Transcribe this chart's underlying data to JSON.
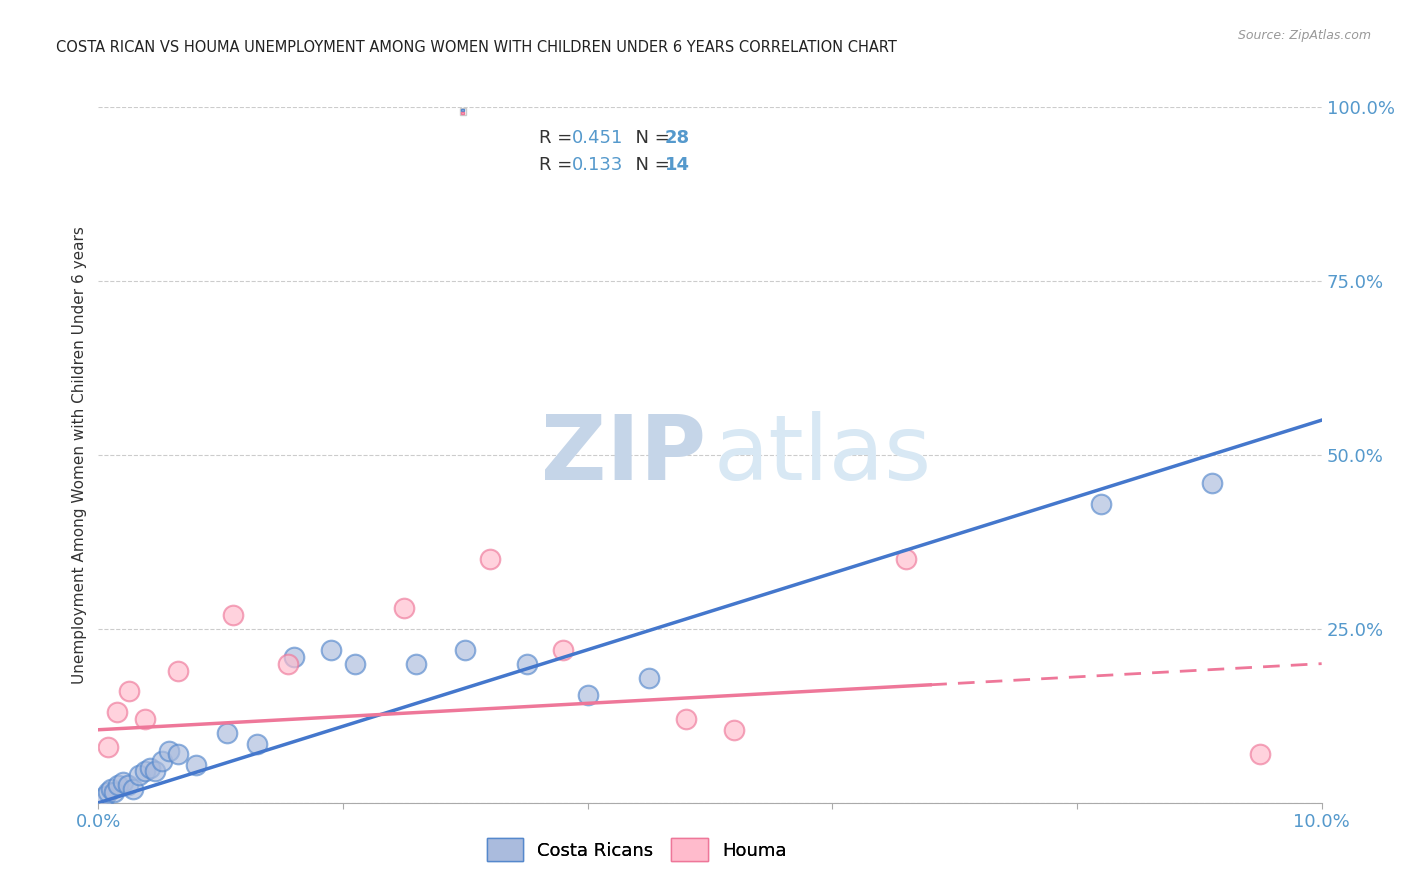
{
  "title": "COSTA RICAN VS HOUMA UNEMPLOYMENT AMONG WOMEN WITH CHILDREN UNDER 6 YEARS CORRELATION CHART",
  "source": "Source: ZipAtlas.com",
  "ylabel": "Unemployment Among Women with Children Under 6 years",
  "xlim": [
    0.0,
    10.0
  ],
  "ylim": [
    0.0,
    100.0
  ],
  "yticks_right": [
    0.0,
    25.0,
    50.0,
    75.0,
    100.0
  ],
  "ytick_labels_right": [
    "",
    "25.0%",
    "50.0%",
    "75.0%",
    "100.0%"
  ],
  "xticks": [
    0.0,
    2.0,
    4.0,
    6.0,
    8.0,
    10.0
  ],
  "xtick_labels": [
    "0.0%",
    "",
    "",
    "",
    "",
    "10.0%"
  ],
  "legend_blue_r": "R = 0.451",
  "legend_blue_n": "N = 28",
  "legend_pink_r": "R = 0.133",
  "legend_pink_n": "N = 14",
  "legend_label_blue": "Costa Ricans",
  "legend_label_pink": "Houma",
  "blue_face_color": "#AABBDD",
  "blue_edge_color": "#5588CC",
  "pink_face_color": "#FFBBCC",
  "pink_edge_color": "#EE7799",
  "blue_line_color": "#4477CC",
  "pink_line_color": "#EE7799",
  "right_axis_color": "#5599CC",
  "background_color": "#FFFFFF",
  "grid_color": "#CCCCCC",
  "costa_ricans_x": [
    0.05,
    0.08,
    0.1,
    0.13,
    0.16,
    0.2,
    0.24,
    0.28,
    0.33,
    0.38,
    0.42,
    0.46,
    0.52,
    0.58,
    0.65,
    0.8,
    1.05,
    1.3,
    1.6,
    1.9,
    2.1,
    2.6,
    3.0,
    3.5,
    4.0,
    4.5,
    8.2,
    9.1
  ],
  "costa_ricans_y": [
    1.0,
    1.5,
    2.0,
    1.5,
    2.5,
    3.0,
    2.5,
    2.0,
    4.0,
    4.5,
    5.0,
    4.5,
    6.0,
    7.5,
    7.0,
    5.5,
    10.0,
    8.5,
    21.0,
    22.0,
    20.0,
    20.0,
    22.0,
    20.0,
    15.5,
    18.0,
    43.0,
    46.0
  ],
  "houma_x": [
    0.08,
    0.15,
    0.25,
    0.38,
    0.65,
    1.1,
    1.55,
    2.5,
    3.2,
    3.8,
    4.8,
    5.2,
    6.6,
    9.5
  ],
  "houma_y": [
    8.0,
    13.0,
    16.0,
    12.0,
    19.0,
    27.0,
    20.0,
    28.0,
    35.0,
    22.0,
    12.0,
    10.5,
    35.0,
    7.0
  ],
  "blue_reg_x0": 0.0,
  "blue_reg_x1": 10.0,
  "blue_reg_y0": 0.0,
  "blue_reg_y1": 55.0,
  "pink_reg_x0": 0.0,
  "pink_reg_x1": 10.0,
  "pink_reg_y0": 10.5,
  "pink_reg_y1": 20.0,
  "pink_solid_end_x": 6.8,
  "marker_size": 200,
  "line_width": 2.5
}
